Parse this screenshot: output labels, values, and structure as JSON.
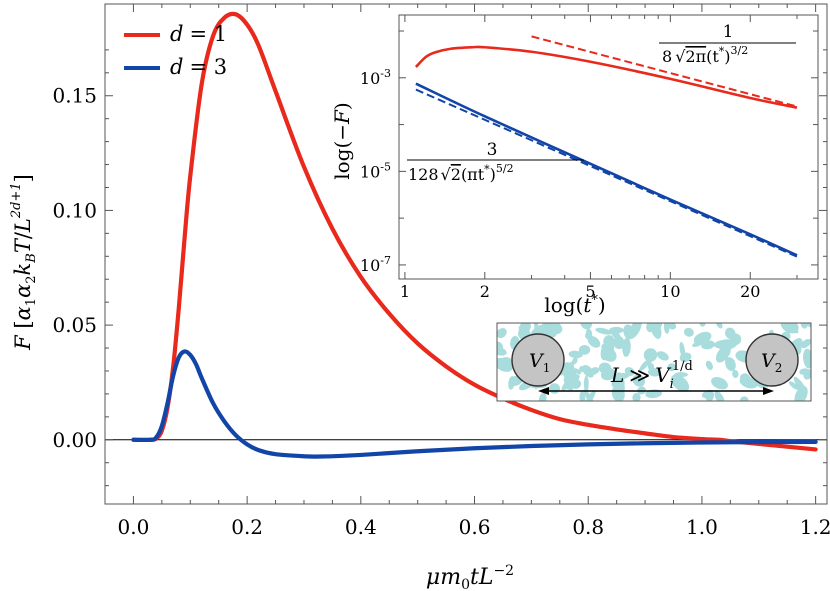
{
  "chart_data": [
    {
      "type": "line",
      "title": "",
      "xlabel": "μm₀tL⁻²",
      "ylabel": "F [α₁α₂k_BT/L^{2d+1}]",
      "xlim": [
        -0.05,
        1.22
      ],
      "ylim": [
        -0.028,
        0.19
      ],
      "x_ticks": [
        0.0,
        0.2,
        0.4,
        0.6,
        0.8,
        1.0,
        1.2
      ],
      "x_tick_labels": [
        "0.0",
        "0.2",
        "0.4",
        "0.6",
        "0.8",
        "1.0",
        "1.2"
      ],
      "y_ticks": [
        0.0,
        0.05,
        0.1,
        0.15
      ],
      "y_tick_labels": [
        "0.00",
        "0.05",
        "0.10",
        "0.15"
      ],
      "grid": false,
      "legend_placement": "top-left",
      "zero_line": true,
      "series": [
        {
          "name": "d = 1",
          "color": "#e8291c",
          "x": [
            0.0,
            0.03,
            0.04,
            0.05,
            0.06,
            0.07,
            0.08,
            0.09,
            0.1,
            0.12,
            0.14,
            0.16,
            0.18,
            0.2,
            0.22,
            0.25,
            0.3,
            0.35,
            0.4,
            0.45,
            0.5,
            0.55,
            0.6,
            0.65,
            0.7,
            0.75,
            0.8,
            0.85,
            0.9,
            0.95,
            1.0,
            1.03,
            1.05,
            1.1,
            1.15,
            1.2
          ],
          "y": [
            0.0,
            0.0,
            0.0005,
            0.004,
            0.014,
            0.032,
            0.058,
            0.088,
            0.115,
            0.155,
            0.176,
            0.184,
            0.1855,
            0.181,
            0.172,
            0.152,
            0.119,
            0.092,
            0.071,
            0.055,
            0.042,
            0.032,
            0.024,
            0.018,
            0.013,
            0.009,
            0.0065,
            0.0045,
            0.0028,
            0.0012,
            0.0003,
            0.0,
            -0.0006,
            -0.0018,
            -0.003,
            -0.0042
          ]
        },
        {
          "name": "d = 3",
          "color": "#1245a8",
          "x": [
            0.0,
            0.03,
            0.04,
            0.05,
            0.06,
            0.07,
            0.08,
            0.09,
            0.1,
            0.11,
            0.12,
            0.14,
            0.16,
            0.18,
            0.2,
            0.22,
            0.25,
            0.3,
            0.33,
            0.4,
            0.5,
            0.6,
            0.7,
            0.8,
            0.9,
            1.0,
            1.1,
            1.2
          ],
          "y": [
            0.0,
            0.0,
            0.001,
            0.006,
            0.016,
            0.028,
            0.036,
            0.0385,
            0.037,
            0.033,
            0.027,
            0.016,
            0.008,
            0.002,
            -0.002,
            -0.0045,
            -0.0063,
            -0.0072,
            -0.0073,
            -0.0066,
            -0.005,
            -0.0037,
            -0.0027,
            -0.002,
            -0.0015,
            -0.0012,
            -0.001,
            -0.0009
          ]
        }
      ],
      "legend": [
        {
          "label_var": "d",
          "label_eq": "= 1",
          "color": "#e8291c"
        },
        {
          "label_var": "d",
          "label_eq": "= 3",
          "color": "#1245a8"
        }
      ]
    },
    {
      "type": "line",
      "title": "",
      "xlabel": "log(t*)",
      "ylabel": "log(−F)",
      "x_scale": "log",
      "y_scale": "log",
      "xlim": [
        0.95,
        36
      ],
      "ylim": [
        5e-08,
        0.022
      ],
      "x_ticks": [
        1,
        2,
        5,
        10,
        20
      ],
      "x_tick_labels": [
        "1",
        "2",
        "5",
        "10",
        "20"
      ],
      "y_ticks": [
        0.001,
        1e-05,
        1e-07
      ],
      "y_tick_labels": [
        {
          "base": "10",
          "exp": "-3"
        },
        {
          "base": "10",
          "exp": "-5"
        },
        {
          "base": "10",
          "exp": "-7"
        }
      ],
      "series": [
        {
          "name": "d = 1",
          "color": "#e8291c",
          "style": "solid",
          "x": [
            1.1,
            1.2,
            1.3,
            1.5,
            1.8,
            2.0,
            3.0,
            5.0,
            10.0,
            20.0,
            30.0
          ],
          "y": [
            0.0017,
            0.0028,
            0.0035,
            0.0042,
            0.0045,
            0.0045,
            0.0036,
            0.0022,
            0.00095,
            0.00037,
            0.00023
          ]
        },
        {
          "name": "d = 1 asymptote",
          "color": "#e8291c",
          "style": "dashed",
          "x": [
            3.0,
            30.0
          ],
          "y": [
            0.00768,
            0.000243
          ]
        },
        {
          "name": "d = 3",
          "color": "#1245a8",
          "style": "solid",
          "x": [
            1.1,
            2.0,
            5.0,
            10.0,
            20.0,
            30.0
          ],
          "y": [
            0.00075,
            0.00015,
            1.45e-05,
            2.5e-06,
            4.5e-07,
            1.6e-07
          ]
        },
        {
          "name": "d = 3 asymptote",
          "color": "#1245a8",
          "style": "dashed",
          "x": [
            1.1,
            30.0
          ],
          "y": [
            0.00056,
            1.5e-07
          ]
        }
      ],
      "annotations": [
        {
          "text": "1/(8√(2π)(t*)^{3/2})",
          "near": "top-right"
        },
        {
          "text": "3/(128√2(πt*)^{5/2})",
          "near": "left-middle"
        }
      ]
    }
  ],
  "schematic": {
    "label_v1_base": "V",
    "label_v1_sub": "1",
    "label_v2_base": "V",
    "label_v2_sub": "2",
    "label_L": "L",
    "label_gg": "≫",
    "label_Vi_base": "V",
    "label_Vi_sub": "i",
    "label_Vi_exp": "1/d",
    "blob_color": "#a9dcdc",
    "circle_color": "#c4c4c4"
  },
  "inset_labels": {
    "red_num": "1",
    "red_den_a": "8",
    "red_den_b": "2π",
    "red_den_c": "(t",
    "red_den_d": "*",
    "red_den_e": ")",
    "red_den_f": "3/2",
    "blue_num": "3",
    "blue_den_a": "128",
    "blue_den_b": "2",
    "blue_den_c": "(πt",
    "blue_den_d": "*",
    "blue_den_e": ")",
    "blue_den_f": "5/2",
    "xlabel_a": "log(",
    "xlabel_t": "t",
    "xlabel_star": "*",
    "xlabel_b": ")",
    "ylabel_a": "log(−",
    "ylabel_F": "F",
    "ylabel_b": ")"
  },
  "main_labels": {
    "x_mu": "μm",
    "x_sub0": "0",
    "x_t": "tL",
    "x_exp": "−2",
    "y_F": "F",
    "y_open": " [",
    "y_alpha1": "α",
    "y_sub1": "1",
    "y_alpha2": "α",
    "y_sub2": "2",
    "y_k": "k",
    "y_subB": "B",
    "y_T": "T",
    "y_slash": "/",
    "y_L": "L",
    "y_exp": "2d+1",
    "y_close": "]"
  }
}
